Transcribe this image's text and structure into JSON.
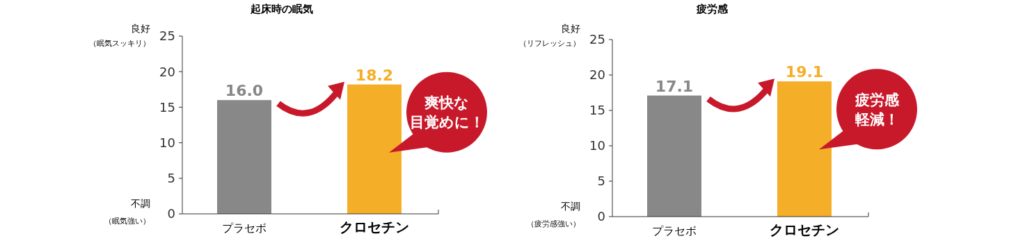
{
  "chart_data": [
    {
      "type": "bar",
      "title": "起床時の眠気",
      "categories": [
        "プラセボ",
        "クロセチン"
      ],
      "values": [
        16.0,
        18.2
      ],
      "value_labels": [
        "16.0",
        "18.2"
      ],
      "colors": [
        "#888888",
        "#f5ae27"
      ],
      "ylim": [
        0,
        25
      ],
      "yticks": [
        0,
        5,
        10,
        15,
        20,
        25
      ],
      "annotations": [
        "良好",
        "（眠気スッキリ）",
        "不調",
        "（眠気強い）",
        "爽快な",
        "目覚めに！"
      ]
    },
    {
      "type": "bar",
      "title": "疲労感",
      "categories": [
        "プラセボ",
        "クロセチン"
      ],
      "values": [
        17.1,
        19.1
      ],
      "value_labels": [
        "17.1",
        "19.1"
      ],
      "colors": [
        "#888888",
        "#f5ae27"
      ],
      "ylim": [
        0,
        25
      ],
      "yticks": [
        0,
        5,
        10,
        15,
        20,
        25
      ],
      "annotations": [
        "良好",
        "（リフレッシュ）",
        "不調",
        "（疲労感強い）",
        "疲労感",
        "軽減！"
      ]
    }
  ]
}
